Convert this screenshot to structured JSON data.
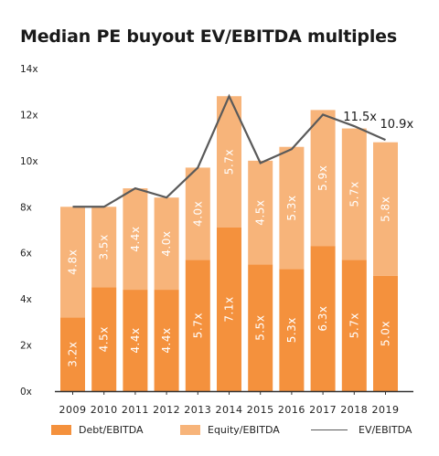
{
  "title": "Median PE buyout EV/EBITDA multiples",
  "colors": {
    "debt": "#f4913d",
    "equity": "#f7b47a",
    "line": "#5a5a5a",
    "axis": "#333333"
  },
  "legend": {
    "debt": "Debt/EBITDA",
    "equity": "Equity/EBITDA",
    "line": "EV/EBITDA"
  },
  "chart_data": {
    "type": "bar",
    "stacked": true,
    "title": "Median PE buyout EV/EBITDA multiples",
    "categories": [
      "2009",
      "2010",
      "2011",
      "2012",
      "2013",
      "2014",
      "2015",
      "2016",
      "2017",
      "2018",
      "2019"
    ],
    "series": [
      {
        "name": "Debt/EBITDA",
        "values": [
          3.2,
          4.5,
          4.4,
          4.4,
          5.7,
          7.1,
          5.5,
          5.3,
          6.3,
          5.7,
          5.0
        ],
        "labels": [
          "3.2x",
          "4.5x",
          "4.4x",
          "4.4x",
          "5.7x",
          "7.1x",
          "5.5x",
          "5.3x",
          "6.3x",
          "5.7x",
          "5.0x"
        ]
      },
      {
        "name": "Equity/EBITDA",
        "values": [
          4.8,
          3.5,
          4.4,
          4.0,
          4.0,
          5.7,
          4.5,
          5.3,
          5.9,
          5.7,
          5.8
        ],
        "labels": [
          "4.8x",
          "3.5x",
          "4.4x",
          "4.0x",
          "4.0x",
          "5.7x",
          "4.5x",
          "5.3x",
          "5.9x",
          "5.7x",
          "5.8x"
        ]
      }
    ],
    "line": {
      "name": "EV/EBITDA",
      "values": [
        8.0,
        8.0,
        8.8,
        8.4,
        9.7,
        12.8,
        9.9,
        10.5,
        12.0,
        11.5,
        10.9
      ]
    },
    "annotations": [
      {
        "index": 9,
        "text": "11.5x"
      },
      {
        "index": 10,
        "text": "10.9x"
      }
    ],
    "yticks": [
      "0x",
      "2x",
      "4x",
      "6x",
      "8x",
      "10x",
      "12x",
      "14x"
    ],
    "ylim": [
      0,
      14
    ],
    "legend_position": "bottom"
  }
}
